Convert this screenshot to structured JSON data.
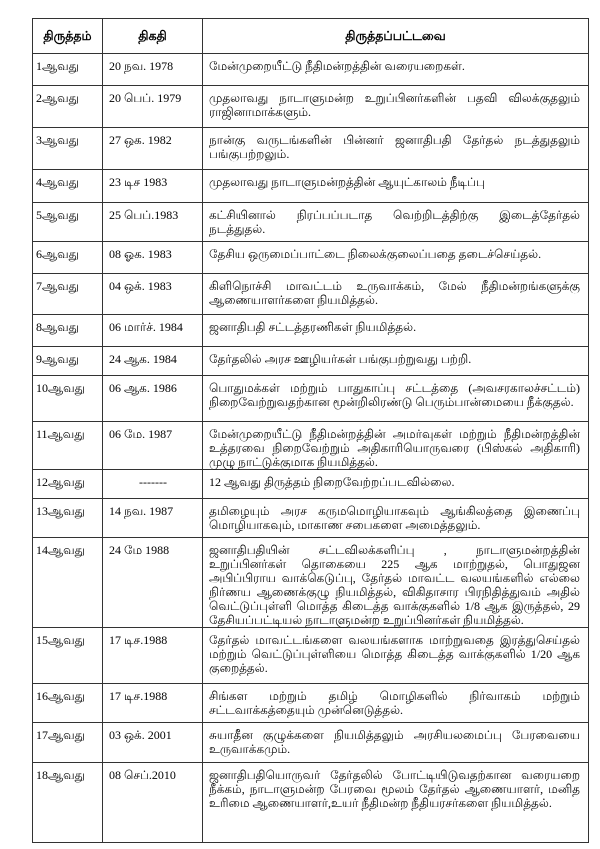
{
  "headers": [
    "திருத்தம்",
    "திகதி",
    "திருத்தப்பட்டவை"
  ],
  "rows": [
    {
      "no": "1ஆவது",
      "date": "20  நவ.  1978",
      "desc": "மேன்முறையீட்டு நீதிமன்றத்தின் வரையறைகள்."
    },
    {
      "no": "2ஆவது",
      "date": "20  பெப்.  1979",
      "desc": "முதலாவது நாடாளுமன்ற உறுப்பினர்களின் பதவி விலக்குதலும் ராஜினாமாக்களும்."
    },
    {
      "no": "3ஆவது",
      "date": "27  ஒக.  1982",
      "desc": "நான்கு வருடங்களின் பின்னர் ஜனாதிபதி தேர்தல் நடத்துதலும் பங்குபற்றலும்."
    },
    {
      "no": "4ஆவது",
      "date": "23  டிச  1983",
      "desc": "முதலாவது நாடாளுமன்றத்தின் ஆயுட்காலம் நீடிப்பு"
    },
    {
      "no": "5ஆவது",
      "date": "25  பெப்.1983",
      "desc": "கட்சியினால் நிரப்பப்படாத வெற்றிடத்திற்கு இடைத்தேர்தல் நடத்துதல்."
    },
    {
      "no": "6ஆவது",
      "date": "08  ஓக.  1983",
      "desc": "தேசிய ஒருமைப்பாட்டை நிலைக்குலைப்பதை தடைச்செய்தல்."
    },
    {
      "no": "7ஆவது",
      "date": "04  ஒக்.  1983",
      "desc": "கிளிநொச்சி மாவட்டம் உருவாக்கம், மேல் நீதிமன்றங்களுக்கு ஆணையாளர்களை நியமித்தல்."
    },
    {
      "no": "8ஆவது",
      "date": "06  மார்ச்.  1984",
      "desc": "ஜனாதிபதி சட்டத்தரணிகள் நியமித்தல்."
    },
    {
      "no": "9ஆவது",
      "date": "24  ஆக.  1984",
      "desc": "தேர்தலில் அரச ஊழியர்கள் பங்குபற்றுவது பற்றி."
    },
    {
      "no": "10ஆவது",
      "date": "06  ஆக.  1986",
      "desc": "பொதுமக்கள் மற்றும் பாதுகாப்பு சட்டத்தை (அவசரகாலச்சட்டம்) நிறைவேற்றுவதற்கான மூன்றிலிரண்டு பெரும்பான்மையை நீக்குதல்."
    },
    {
      "no": "11ஆவது",
      "date": "06  மே.  1987",
      "desc": "மேன்முறையீட்டு நீதிமன்றத்தின் அமர்வுகள் மற்றும் நீதிமன்றத்தின் உத்தரவை நிறைவேற்றும் அதிகாரியொருவரை (பிஸ்கல் அதிகாரி) முழு நாட்டுக்குமாக நியமித்தல்."
    },
    {
      "no": "12ஆவது",
      "date": "-------",
      "desc": "12 ஆவது திருத்தம் நிறைவேற்றப்படவில்லை."
    },
    {
      "no": "13ஆவது",
      "date": "14  நவ.  1987",
      "desc": "தமிழையும் அரச கருமமொழியாகவும் ஆங்கிலத்தை இணைப்பு மொழியாகவும், மாகாண சபைகளை அமைத்தலும்."
    },
    {
      "no": "14ஆவது",
      "date": "24  மே  1988",
      "desc": "ஜனாதிபதியின் சட்டவிலக்களிப்பு , நாடாளுமன்றத்தின் உறுப்பினர்கள் தொகையை 225 ஆக மாற்றுதல், பொதுஜன அபிப்பிராய வாக்கெடுப்பு, தேர்தல் மாவட்ட வலயங்களில் எல்லை நிர்ணய ஆணைக்குழு நியமித்தல், விகிதாசார பிரநிதித்துவம் அதில் வெட்டுப்புள்ளி  மொத்த கிடைத்த வாக்குகளில் 1/8 ஆக இருத்தல், 29 தேசியப்பட்டியல் நாடாளுமன்ற உறுப்பினர்கள் நியமித்தல்."
    },
    {
      "no": "15ஆவது",
      "date": "17  டிச.1988",
      "desc": "தேர்தல் மாவட்டங்களை வலயங்களாக மாற்றுவதை இரத்துசெய்தல் மற்றும்  வெட்டுப்புள்ளியை  மொத்த கிடைத்த வாக்குகளில் 1/20 ஆக குறைத்தல்."
    },
    {
      "no": "16ஆவது",
      "date": "17  டிச.1988",
      "desc": "சிங்கள மற்றும் தமிழ் மொழிகளில் நிர்வாகம் மற்றும் சட்டவாக்கத்தையும் முன்னெடுத்தல்."
    },
    {
      "no": "17ஆவது",
      "date": "03  ஒக்.  2001",
      "desc": "சுயாதீன குழுக்களை நியமித்தலும் அரசியலமைப்பு பேரவையை உருவாக்கமும்."
    },
    {
      "no": "18ஆவது",
      "date": "08  செப்.2010",
      "desc": "ஜனாதிபதியொருவர் தேர்தலில் போட்டியிடுவதற்கான வரையறை நீக்கம், நாடாளுமன்ற பேரவை மூலம் தேர்தல் ஆணையாளர், மனித உரிமை ஆணையாளர்,உயர் நீதிமன்ற நீதியரசர்களை நியமித்தல்."
    }
  ]
}
